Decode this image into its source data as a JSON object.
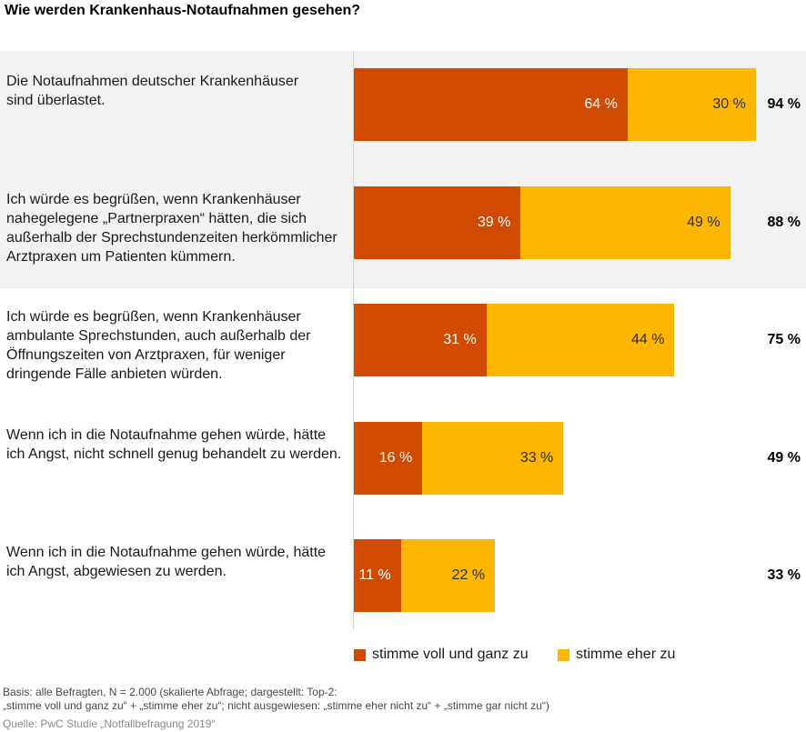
{
  "chart_data": {
    "type": "bar",
    "orientation": "horizontal",
    "stacked": true,
    "title": "Wie werden Krankenhaus-Notaufnahmen gesehen?",
    "categories": [
      "Die Notaufnahmen deutscher Krankenhäuser\nsind überlastet.",
      "Ich würde es begrüßen, wenn Krankenhäuser\nnahegelegene „Partnerpraxen“ hätten, die sich\naußerhalb der Sprechstundenzeiten herkömmlicher\nArztpraxen um Patienten kümmern.",
      "Ich würde es begrüßen, wenn Krankenhäuser\nambulante Sprechstunden, auch außerhalb der\nÖffnungszeiten von Arztpraxen, für weniger\ndringende Fälle anbieten würden.",
      "Wenn ich in die Notaufnahme gehen würde, hätte\nich Angst, nicht schnell genug behandelt zu werden.",
      "Wenn ich in die Notaufnahme gehen würde, hätte\nich Angst, abgewiesen zu werden."
    ],
    "series": [
      {
        "name": "stimme voll und ganz zu",
        "color": "#d04a02",
        "label_color": "#ffffff",
        "values": [
          64,
          39,
          31,
          16,
          11
        ]
      },
      {
        "name": "stimme eher zu",
        "color": "#ffb600",
        "label_color": "#2d2d2d",
        "values": [
          30,
          49,
          44,
          33,
          22
        ]
      }
    ],
    "totals": [
      94,
      88,
      75,
      49,
      33
    ],
    "value_suffix": " %",
    "xlim": [
      0,
      100
    ],
    "grid": false,
    "legend": "bottom"
  },
  "footnote": {
    "basis_line1": "Basis: alle Befragten, N = 2.000 (skalierte Abfrage; dargestellt: Top-2:",
    "basis_line2": "„stimme voll und ganz zu“ + „stimme eher zu“; nicht ausgewiesen: „stimme eher nicht zu“ + „stimme gar nicht zu“)",
    "source": "Quelle: PwC Studie „Notfallbefragung 2019“"
  }
}
